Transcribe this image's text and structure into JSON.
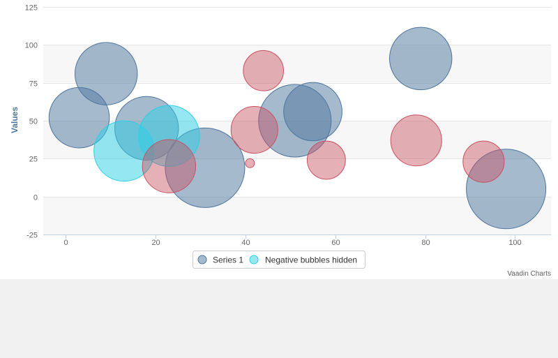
{
  "chart_data": {
    "type": "bubble",
    "title": "",
    "xlabel": "",
    "ylabel": "Values",
    "xlim": [
      -5,
      108
    ],
    "ylim": [
      -25,
      125
    ],
    "x_ticks": [
      0,
      20,
      40,
      60,
      80,
      100
    ],
    "y_ticks": [
      -25,
      0,
      25,
      50,
      75,
      100,
      125
    ],
    "grid": true,
    "alternate_bands": true,
    "legend_position": "bottom-center",
    "series": [
      {
        "name": "Series 1",
        "color": "#4d759e",
        "points": [
          {
            "x": 3,
            "y": 52,
            "z": 45
          },
          {
            "x": 9,
            "y": 81,
            "z": 48
          },
          {
            "x": 18,
            "y": 45,
            "z": 50
          },
          {
            "x": 31,
            "y": 19,
            "z": 78
          },
          {
            "x": 51,
            "y": 50,
            "z": 65
          },
          {
            "x": 55,
            "y": 56,
            "z": 42
          },
          {
            "x": 79,
            "y": 91,
            "z": 48
          },
          {
            "x": 98,
            "y": 5,
            "z": 78
          }
        ]
      },
      {
        "name": "Negative bubbles hidden",
        "color": "#2ccfe5",
        "points": [
          {
            "x": 13,
            "y": 30,
            "z": 45
          },
          {
            "x": 23,
            "y": 40,
            "z": 46
          },
          {
            "x": 23,
            "y": 20,
            "z": -35
          },
          {
            "x": 41,
            "y": 22,
            "z": -1
          },
          {
            "x": 42,
            "y": 44,
            "z": -27
          },
          {
            "x": 44,
            "y": 83,
            "z": -20
          },
          {
            "x": 58,
            "y": 24,
            "z": -18
          },
          {
            "x": 78,
            "y": 37,
            "z": -32
          },
          {
            "x": 93,
            "y": 23,
            "z": -21
          }
        ]
      }
    ],
    "negative_color": "#c8505f"
  },
  "credits": "Vaadin Charts"
}
